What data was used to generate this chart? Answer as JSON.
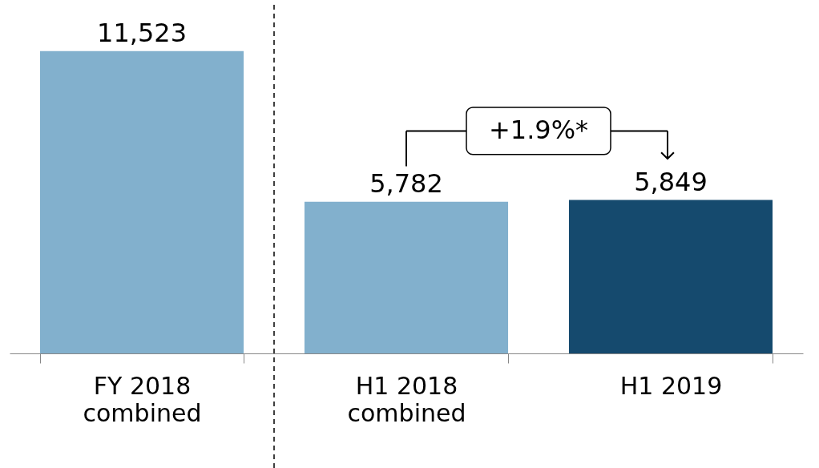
{
  "chart_data": {
    "type": "bar",
    "categories": [
      "FY 2018 combined",
      "H1 2018 combined",
      "H1 2019"
    ],
    "values": [
      11523,
      5782,
      5849
    ],
    "value_labels": [
      "11,523",
      "5,782",
      "5,849"
    ],
    "colors": [
      "#82b0cd",
      "#82b0cd",
      "#154a6e"
    ],
    "tick_labels": "x",
    "annotations": [
      "+1.9%*"
    ]
  }
}
